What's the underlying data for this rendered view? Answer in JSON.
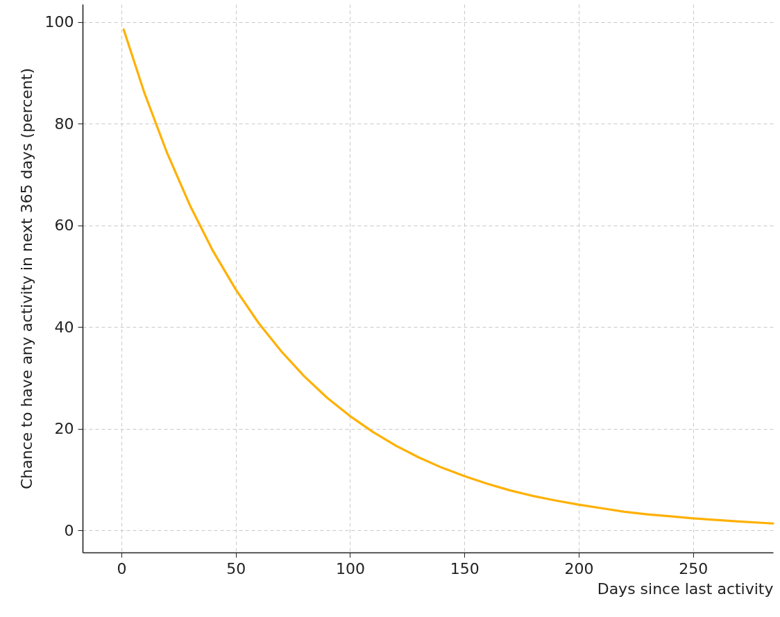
{
  "chart_data": {
    "type": "line",
    "xlabel": "Days since last activity",
    "ylabel": "Chance to have any activity in next 365 days (percent)",
    "x": [
      1,
      10,
      20,
      30,
      40,
      50,
      60,
      70,
      80,
      90,
      100,
      110,
      120,
      130,
      140,
      150,
      160,
      170,
      180,
      190,
      200,
      210,
      220,
      230,
      240,
      250,
      260,
      270,
      285
    ],
    "series": [
      {
        "color": "#ffb000",
        "values": [
          98.5,
          86.1,
          74.2,
          63.9,
          55.0,
          47.4,
          40.8,
          35.2,
          30.3,
          26.1,
          22.5,
          19.4,
          16.7,
          14.4,
          12.4,
          10.7,
          9.2,
          7.9,
          6.8,
          5.9,
          5.1,
          4.4,
          3.7,
          3.2,
          2.8,
          2.4,
          2.1,
          1.8,
          1.4
        ]
      }
    ],
    "xlim": [
      -17,
      285
    ],
    "ylim": [
      -4.3,
      103.5
    ],
    "xticks": [
      0,
      50,
      100,
      150,
      200,
      250
    ],
    "yticks": [
      0,
      20,
      40,
      60,
      80,
      100
    ],
    "grid": true,
    "marker": "none",
    "line_style": "solid"
  }
}
